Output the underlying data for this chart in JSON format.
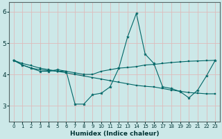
{
  "title": "",
  "xlabel": "Humidex (Indice chaleur)",
  "background_color": "#cce8e8",
  "grid_color": "#aacccc",
  "line_color": "#006666",
  "xlim": [
    -0.5,
    23.5
  ],
  "ylim": [
    2.5,
    6.3
  ],
  "yticks": [
    3,
    4,
    5,
    6
  ],
  "xticks": [
    0,
    1,
    2,
    3,
    4,
    5,
    6,
    7,
    8,
    9,
    10,
    11,
    12,
    13,
    14,
    15,
    16,
    17,
    18,
    19,
    20,
    21,
    22,
    23
  ],
  "s1": [
    4.45,
    4.3,
    4.2,
    4.1,
    4.1,
    4.15,
    4.1,
    3.05,
    3.05,
    3.35,
    3.4,
    3.6,
    4.2,
    5.2,
    5.95,
    4.65,
    4.35,
    3.6,
    3.55,
    3.45,
    3.25,
    3.5,
    3.95,
    4.45
  ],
  "s2": [
    4.45,
    4.3,
    4.2,
    4.15,
    4.12,
    4.1,
    4.1,
    4.05,
    4.0,
    4.0,
    4.1,
    4.15,
    4.2,
    4.22,
    4.25,
    4.3,
    4.32,
    4.35,
    4.38,
    4.4,
    4.42,
    4.43,
    4.44,
    4.45
  ],
  "s3": [
    4.45,
    4.35,
    4.28,
    4.2,
    4.15,
    4.1,
    4.05,
    4.0,
    3.95,
    3.9,
    3.85,
    3.8,
    3.75,
    3.7,
    3.65,
    3.62,
    3.6,
    3.55,
    3.5,
    3.46,
    3.42,
    3.4,
    3.38,
    3.38
  ]
}
